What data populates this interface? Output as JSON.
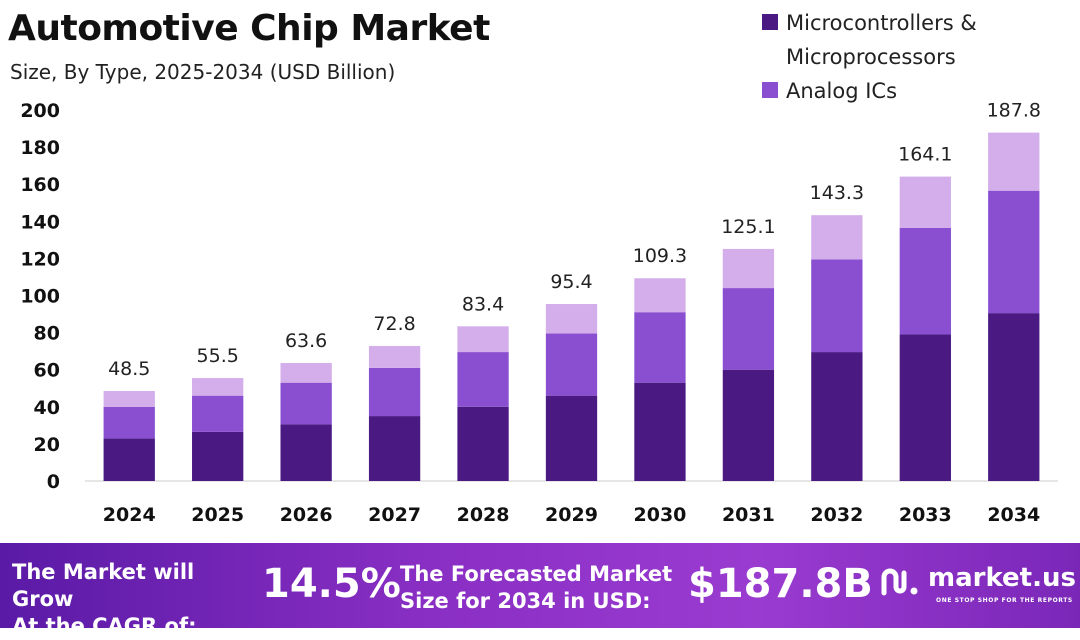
{
  "header": {
    "title": "Automotive Chip Market",
    "subtitle": "Size, By Type, 2025-2034 (USD Billion)"
  },
  "legend": [
    {
      "label_line1": "Microcontrollers &",
      "label_line2": "Microprocessors",
      "color": "#4a1a82"
    },
    {
      "label_line1": "Analog ICs",
      "label_line2": "",
      "color": "#8a4fd0"
    }
  ],
  "chart_data": {
    "type": "bar",
    "stacked": true,
    "categories": [
      "2024",
      "2025",
      "2026",
      "2027",
      "2028",
      "2029",
      "2030",
      "2031",
      "2032",
      "2033",
      "2034"
    ],
    "series": [
      {
        "name": "Microcontrollers & Microprocessors",
        "color": "#4a1a82",
        "values": [
          23,
          26.5,
          30.5,
          35,
          40,
          46,
          53,
          60,
          69.5,
          79,
          90.5
        ]
      },
      {
        "name": "Analog ICs",
        "color": "#8a4fd0",
        "values": [
          17,
          19.5,
          22.5,
          26,
          29.5,
          33.5,
          38,
          44,
          50,
          57.5,
          66
        ]
      },
      {
        "name": "",
        "color": "#d3aeea",
        "values": [
          8.5,
          9.5,
          10.6,
          11.8,
          13.9,
          15.9,
          18.3,
          21.1,
          23.8,
          27.6,
          31.3
        ]
      }
    ],
    "totals": [
      "48.5",
      "55.5",
      "63.6",
      "72.8",
      "83.4",
      "95.4",
      "109.3",
      "125.1",
      "143.3",
      "164.1",
      "187.8"
    ],
    "yticks": [
      0,
      20,
      40,
      60,
      80,
      100,
      120,
      140,
      160,
      180,
      200
    ],
    "ylim": [
      0,
      200
    ],
    "grid": false,
    "legend_position": "top-right",
    "xlabel": "",
    "ylabel": ""
  },
  "footer": {
    "cagr_label_line1": "The Market will Grow",
    "cagr_label_line2": "At the CAGR of:",
    "cagr_value": "14.5%",
    "forecast_label_line1": "The Forecasted Market",
    "forecast_label_line2": "Size for 2034 in USD:",
    "forecast_value": "$187.8B",
    "brand_name": "market.us",
    "brand_tagline": "ONE STOP SHOP FOR THE REPORTS",
    "brand_logo_icon": "market-us-logo-icon"
  }
}
